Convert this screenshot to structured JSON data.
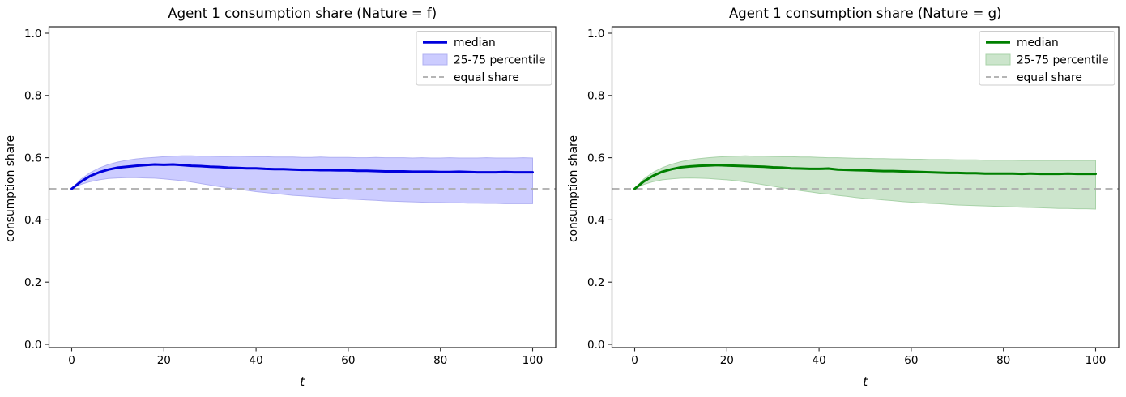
{
  "figure": {
    "background": "#ffffff"
  },
  "chart_data": [
    {
      "type": "line",
      "title": "Agent 1 consumption share (Nature = f)",
      "xlabel": "t",
      "ylabel": "consumption share",
      "xlim": [
        -5,
        105
      ],
      "ylim": [
        0.0,
        1.0
      ],
      "xticks": [
        0,
        20,
        40,
        60,
        80,
        100
      ],
      "yticks": [
        0.0,
        0.2,
        0.4,
        0.6,
        0.8,
        1.0
      ],
      "grid": false,
      "legend_position": "upper right",
      "equal_share": 0.5,
      "colors": {
        "line": "#0000dd",
        "band": "#ccccff",
        "band_edge": "#b0b0f2",
        "equal": "#ababab",
        "axes": "#262626",
        "legend_border": "#cccccc"
      },
      "legend": [
        {
          "label": "median",
          "type": "line"
        },
        {
          "label": "25-75 percentile",
          "type": "patch"
        },
        {
          "label": "equal share",
          "type": "dashed"
        }
      ],
      "x": [
        0,
        2,
        4,
        6,
        8,
        10,
        12,
        14,
        16,
        18,
        20,
        22,
        24,
        26,
        28,
        30,
        32,
        34,
        36,
        38,
        40,
        42,
        44,
        46,
        48,
        50,
        52,
        54,
        56,
        58,
        60,
        62,
        64,
        66,
        68,
        70,
        72,
        74,
        76,
        78,
        80,
        82,
        84,
        86,
        88,
        90,
        92,
        94,
        96,
        98,
        100
      ],
      "series": [
        {
          "name": "median",
          "values": [
            0.5,
            0.523,
            0.541,
            0.553,
            0.562,
            0.568,
            0.571,
            0.574,
            0.576,
            0.578,
            0.577,
            0.578,
            0.576,
            0.574,
            0.573,
            0.571,
            0.57,
            0.568,
            0.567,
            0.566,
            0.566,
            0.564,
            0.563,
            0.563,
            0.562,
            0.561,
            0.561,
            0.56,
            0.56,
            0.559,
            0.559,
            0.558,
            0.558,
            0.557,
            0.556,
            0.556,
            0.556,
            0.555,
            0.555,
            0.555,
            0.554,
            0.554,
            0.555,
            0.554,
            0.553,
            0.553,
            0.553,
            0.554,
            0.553,
            0.553,
            0.553
          ]
        },
        {
          "name": "p25",
          "values": [
            0.5,
            0.514,
            0.523,
            0.529,
            0.533,
            0.535,
            0.536,
            0.536,
            0.535,
            0.534,
            0.532,
            0.529,
            0.526,
            0.522,
            0.517,
            0.512,
            0.507,
            0.503,
            0.499,
            0.495,
            0.491,
            0.488,
            0.485,
            0.482,
            0.479,
            0.477,
            0.475,
            0.473,
            0.471,
            0.469,
            0.467,
            0.466,
            0.464,
            0.463,
            0.461,
            0.46,
            0.459,
            0.458,
            0.457,
            0.456,
            0.456,
            0.455,
            0.455,
            0.454,
            0.454,
            0.453,
            0.453,
            0.452,
            0.452,
            0.452,
            0.452
          ]
        },
        {
          "name": "p75",
          "values": [
            0.5,
            0.531,
            0.552,
            0.567,
            0.578,
            0.586,
            0.592,
            0.596,
            0.599,
            0.601,
            0.603,
            0.605,
            0.606,
            0.606,
            0.605,
            0.605,
            0.604,
            0.604,
            0.605,
            0.604,
            0.603,
            0.603,
            0.602,
            0.602,
            0.602,
            0.601,
            0.601,
            0.602,
            0.601,
            0.601,
            0.601,
            0.6,
            0.6,
            0.601,
            0.6,
            0.6,
            0.6,
            0.599,
            0.6,
            0.599,
            0.599,
            0.6,
            0.599,
            0.599,
            0.599,
            0.6,
            0.599,
            0.599,
            0.599,
            0.6,
            0.599
          ]
        }
      ]
    },
    {
      "type": "line",
      "title": "Agent 1 consumption share (Nature = g)",
      "xlabel": "t",
      "ylabel": "consumption share",
      "xlim": [
        -5,
        105
      ],
      "ylim": [
        0.0,
        1.0
      ],
      "xticks": [
        0,
        20,
        40,
        60,
        80,
        100
      ],
      "yticks": [
        0.0,
        0.2,
        0.4,
        0.6,
        0.8,
        1.0
      ],
      "grid": false,
      "legend_position": "upper right",
      "equal_share": 0.5,
      "colors": {
        "line": "#008000",
        "band": "#cce5cc",
        "band_edge": "#a8d2a8",
        "equal": "#ababab",
        "axes": "#262626",
        "legend_border": "#cccccc"
      },
      "legend": [
        {
          "label": "median",
          "type": "line"
        },
        {
          "label": "25-75 percentile",
          "type": "patch"
        },
        {
          "label": "equal share",
          "type": "dashed"
        }
      ],
      "x": [
        0,
        2,
        4,
        6,
        8,
        10,
        12,
        14,
        16,
        18,
        20,
        22,
        24,
        26,
        28,
        30,
        32,
        34,
        36,
        38,
        40,
        42,
        44,
        46,
        48,
        50,
        52,
        54,
        56,
        58,
        60,
        62,
        64,
        66,
        68,
        70,
        72,
        74,
        76,
        78,
        80,
        82,
        84,
        86,
        88,
        90,
        92,
        94,
        96,
        98,
        100
      ],
      "series": [
        {
          "name": "median",
          "values": [
            0.5,
            0.524,
            0.542,
            0.555,
            0.563,
            0.569,
            0.572,
            0.574,
            0.575,
            0.576,
            0.575,
            0.574,
            0.573,
            0.572,
            0.571,
            0.569,
            0.568,
            0.566,
            0.565,
            0.564,
            0.564,
            0.565,
            0.562,
            0.561,
            0.56,
            0.559,
            0.558,
            0.557,
            0.557,
            0.556,
            0.555,
            0.554,
            0.553,
            0.552,
            0.551,
            0.551,
            0.55,
            0.55,
            0.549,
            0.549,
            0.549,
            0.549,
            0.548,
            0.549,
            0.548,
            0.548,
            0.548,
            0.549,
            0.548,
            0.548,
            0.548
          ]
        },
        {
          "name": "p25",
          "values": [
            0.5,
            0.514,
            0.523,
            0.529,
            0.532,
            0.534,
            0.535,
            0.534,
            0.533,
            0.531,
            0.529,
            0.526,
            0.522,
            0.518,
            0.513,
            0.508,
            0.503,
            0.499,
            0.494,
            0.49,
            0.486,
            0.483,
            0.479,
            0.476,
            0.472,
            0.469,
            0.467,
            0.464,
            0.462,
            0.459,
            0.457,
            0.455,
            0.453,
            0.452,
            0.45,
            0.448,
            0.447,
            0.446,
            0.445,
            0.444,
            0.443,
            0.442,
            0.441,
            0.44,
            0.439,
            0.438,
            0.437,
            0.437,
            0.436,
            0.436,
            0.435
          ]
        },
        {
          "name": "p75",
          "values": [
            0.5,
            0.532,
            0.553,
            0.568,
            0.579,
            0.587,
            0.593,
            0.597,
            0.6,
            0.602,
            0.604,
            0.605,
            0.606,
            0.605,
            0.605,
            0.604,
            0.603,
            0.603,
            0.602,
            0.602,
            0.601,
            0.6,
            0.6,
            0.599,
            0.598,
            0.598,
            0.597,
            0.597,
            0.596,
            0.596,
            0.595,
            0.595,
            0.594,
            0.594,
            0.594,
            0.593,
            0.593,
            0.593,
            0.592,
            0.592,
            0.592,
            0.592,
            0.591,
            0.591,
            0.591,
            0.591,
            0.591,
            0.591,
            0.591,
            0.591,
            0.591
          ]
        }
      ]
    }
  ]
}
